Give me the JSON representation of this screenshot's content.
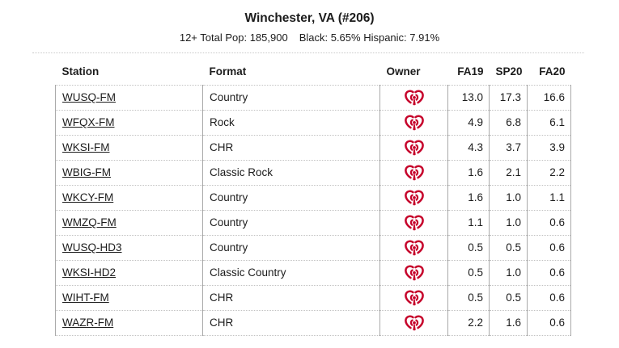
{
  "page": {
    "title": "Winchester, VA (#206)",
    "population": "12+ Total Pop: 185,900",
    "demographics": "Black: 5.65% Hispanic: 7.91%"
  },
  "table": {
    "columns": [
      {
        "key": "station",
        "label": "Station"
      },
      {
        "key": "format",
        "label": "Format"
      },
      {
        "key": "owner",
        "label": "Owner"
      },
      {
        "key": "fa19",
        "label": "FA19"
      },
      {
        "key": "sp20",
        "label": "SP20"
      },
      {
        "key": "fa20",
        "label": "FA20"
      }
    ],
    "owner_icon": "iheart-logo",
    "brand_red": "#c6032b",
    "rows": [
      {
        "station": "WUSQ-FM",
        "format": "Country",
        "owner": "iHeartMedia",
        "fa19": "13.0",
        "sp20": "17.3",
        "fa20": "16.6"
      },
      {
        "station": "WFQX-FM",
        "format": "Rock",
        "owner": "iHeartMedia",
        "fa19": "4.9",
        "sp20": "6.8",
        "fa20": "6.1"
      },
      {
        "station": "WKSI-FM",
        "format": "CHR",
        "owner": "iHeartMedia",
        "fa19": "4.3",
        "sp20": "3.7",
        "fa20": "3.9"
      },
      {
        "station": "WBIG-FM",
        "format": "Classic Rock",
        "owner": "iHeartMedia",
        "fa19": "1.6",
        "sp20": "2.1",
        "fa20": "2.2"
      },
      {
        "station": "WKCY-FM",
        "format": "Country",
        "owner": "iHeartMedia",
        "fa19": "1.6",
        "sp20": "1.0",
        "fa20": "1.1"
      },
      {
        "station": "WMZQ-FM",
        "format": "Country",
        "owner": "iHeartMedia",
        "fa19": "1.1",
        "sp20": "1.0",
        "fa20": "0.6"
      },
      {
        "station": "WUSQ-HD3",
        "format": "Country",
        "owner": "iHeartMedia",
        "fa19": "0.5",
        "sp20": "0.5",
        "fa20": "0.6"
      },
      {
        "station": "WKSI-HD2",
        "format": "Classic Country",
        "owner": "iHeartMedia",
        "fa19": "0.5",
        "sp20": "1.0",
        "fa20": "0.6"
      },
      {
        "station": "WIHT-FM",
        "format": "CHR",
        "owner": "iHeartMedia",
        "fa19": "0.5",
        "sp20": "0.5",
        "fa20": "0.6"
      },
      {
        "station": "WAZR-FM",
        "format": "CHR",
        "owner": "iHeartMedia",
        "fa19": "2.2",
        "sp20": "1.6",
        "fa20": "0.6"
      }
    ]
  }
}
